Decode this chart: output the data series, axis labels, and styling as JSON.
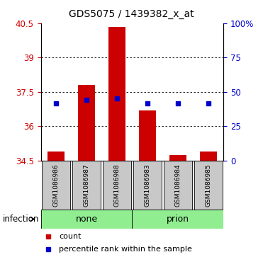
{
  "title": "GDS5075 / 1439382_x_at",
  "samples": [
    "GSM1086986",
    "GSM1086987",
    "GSM1086988",
    "GSM1086983",
    "GSM1086984",
    "GSM1086985"
  ],
  "groups": [
    "none",
    "none",
    "none",
    "prion",
    "prion",
    "prion"
  ],
  "ylim_left": [
    34.5,
    40.5
  ],
  "yticks_left": [
    34.5,
    36.0,
    37.5,
    39.0,
    40.5
  ],
  "ytick_left_labels": [
    "34.5",
    "36",
    "37.5",
    "39",
    "40.5"
  ],
  "yticks_right_vals": [
    0,
    25,
    50,
    75,
    100
  ],
  "yticks_right_labels": [
    "0",
    "25",
    "50",
    "75",
    "100%"
  ],
  "bar_bottom": 34.5,
  "bar_tops": [
    34.9,
    37.8,
    40.35,
    36.7,
    34.75,
    34.9
  ],
  "percentile_ranks": [
    37.0,
    37.15,
    37.2,
    37.0,
    37.0,
    37.0
  ],
  "bar_color": "#cc0000",
  "dot_color": "#0000cc",
  "group_label": "infection",
  "legend_bar_label": "count",
  "legend_dot_label": "percentile rank within the sample",
  "left_tick_color": "#cc0000",
  "right_tick_color": "#0000cc",
  "sample_box_color": "#c8c8c8",
  "group_fill_color": "#90EE90",
  "grid_ticks": [
    36.0,
    37.5,
    39.0
  ]
}
